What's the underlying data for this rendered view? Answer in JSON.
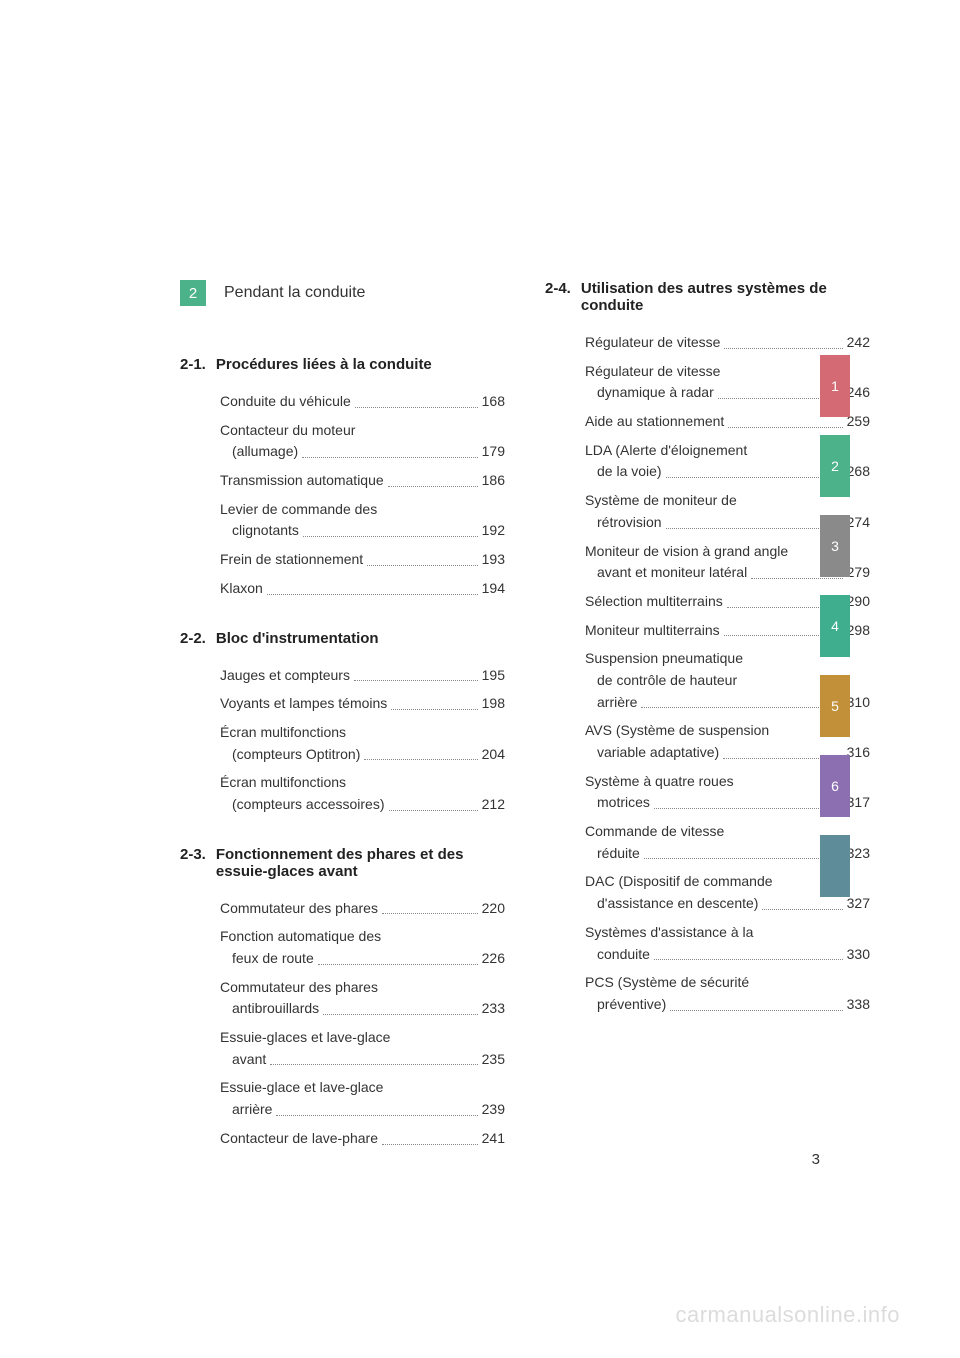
{
  "chapter": {
    "number": "2",
    "title": "Pendant la conduite",
    "accent": "#4cb28a"
  },
  "sections": {
    "s21": {
      "number": "2-1.",
      "title": "Procédures liées à la conduite",
      "items": [
        {
          "lines": [
            "Conduite du véhicule"
          ],
          "page": "168"
        },
        {
          "lines": [
            "Contacteur du moteur",
            "(allumage)"
          ],
          "page": "179"
        },
        {
          "lines": [
            "Transmission automatique"
          ],
          "page": "186"
        },
        {
          "lines": [
            "Levier de commande des",
            "clignotants"
          ],
          "page": "192"
        },
        {
          "lines": [
            "Frein de stationnement"
          ],
          "page": "193"
        },
        {
          "lines": [
            "Klaxon"
          ],
          "page": "194"
        }
      ]
    },
    "s22": {
      "number": "2-2.",
      "title": "Bloc d'instrumentation",
      "items": [
        {
          "lines": [
            "Jauges et compteurs"
          ],
          "page": "195"
        },
        {
          "lines": [
            "Voyants et lampes témoins"
          ],
          "page": "198"
        },
        {
          "lines": [
            "Écran multifonctions",
            "(compteurs Optitron)"
          ],
          "page": "204"
        },
        {
          "lines": [
            "Écran multifonctions",
            "(compteurs accessoires)"
          ],
          "page": "212"
        }
      ]
    },
    "s23": {
      "number": "2-3.",
      "title": "Fonctionnement des phares et des essuie-glaces avant",
      "items": [
        {
          "lines": [
            "Commutateur des phares"
          ],
          "page": "220"
        },
        {
          "lines": [
            "Fonction automatique des",
            "feux de route"
          ],
          "page": "226"
        },
        {
          "lines": [
            "Commutateur des phares",
            "antibrouillards"
          ],
          "page": "233"
        },
        {
          "lines": [
            "Essuie-glaces et lave-glace",
            "avant"
          ],
          "page": "235"
        },
        {
          "lines": [
            "Essuie-glace et lave-glace",
            "arrière"
          ],
          "page": "239"
        },
        {
          "lines": [
            "Contacteur de lave-phare"
          ],
          "page": "241"
        }
      ]
    },
    "s24": {
      "number": "2-4.",
      "title": "Utilisation des autres systèmes de conduite",
      "items": [
        {
          "lines": [
            "Régulateur de vitesse"
          ],
          "page": "242"
        },
        {
          "lines": [
            "Régulateur de vitesse",
            "dynamique à radar"
          ],
          "page": "246"
        },
        {
          "lines": [
            "Aide au stationnement"
          ],
          "page": "259"
        },
        {
          "lines": [
            "LDA (Alerte d'éloignement",
            "de la voie)"
          ],
          "page": "268"
        },
        {
          "lines": [
            "Système de moniteur de",
            "rétrovision"
          ],
          "page": "274"
        },
        {
          "lines": [
            "Moniteur de vision à grand angle",
            "avant et moniteur latéral"
          ],
          "page": "279"
        },
        {
          "lines": [
            "Sélection multiterrains"
          ],
          "page": "290"
        },
        {
          "lines": [
            "Moniteur multiterrains"
          ],
          "page": "298"
        },
        {
          "lines": [
            "Suspension pneumatique",
            "de contrôle de hauteur",
            "arrière"
          ],
          "page": "310"
        },
        {
          "lines": [
            "AVS (Système de suspension",
            "variable adaptative)"
          ],
          "page": "316"
        },
        {
          "lines": [
            "Système à quatre roues",
            "motrices"
          ],
          "page": "317"
        },
        {
          "lines": [
            "Commande de vitesse",
            "réduite"
          ],
          "page": "323"
        },
        {
          "lines": [
            "DAC (Dispositif de commande",
            "d'assistance en descente)"
          ],
          "page": "327"
        },
        {
          "lines": [
            "Systèmes d'assistance à la",
            "conduite"
          ],
          "page": "330"
        },
        {
          "lines": [
            "PCS (Système de sécurité",
            "préventive)"
          ],
          "page": "338"
        }
      ]
    }
  },
  "tabs": [
    {
      "label": "1",
      "color": "#d46a73"
    },
    {
      "label": "2",
      "color": "#4cb28a"
    },
    {
      "label": "3",
      "color": "#8a8a8a"
    },
    {
      "label": "4",
      "color": "#3fae8f"
    },
    {
      "label": "5",
      "color": "#c19039"
    },
    {
      "label": "6",
      "color": "#8c6fb0"
    },
    {
      "label": "",
      "color": "#5e8d99"
    }
  ],
  "footer_page": "3",
  "watermark": "carmanualsonline.info"
}
